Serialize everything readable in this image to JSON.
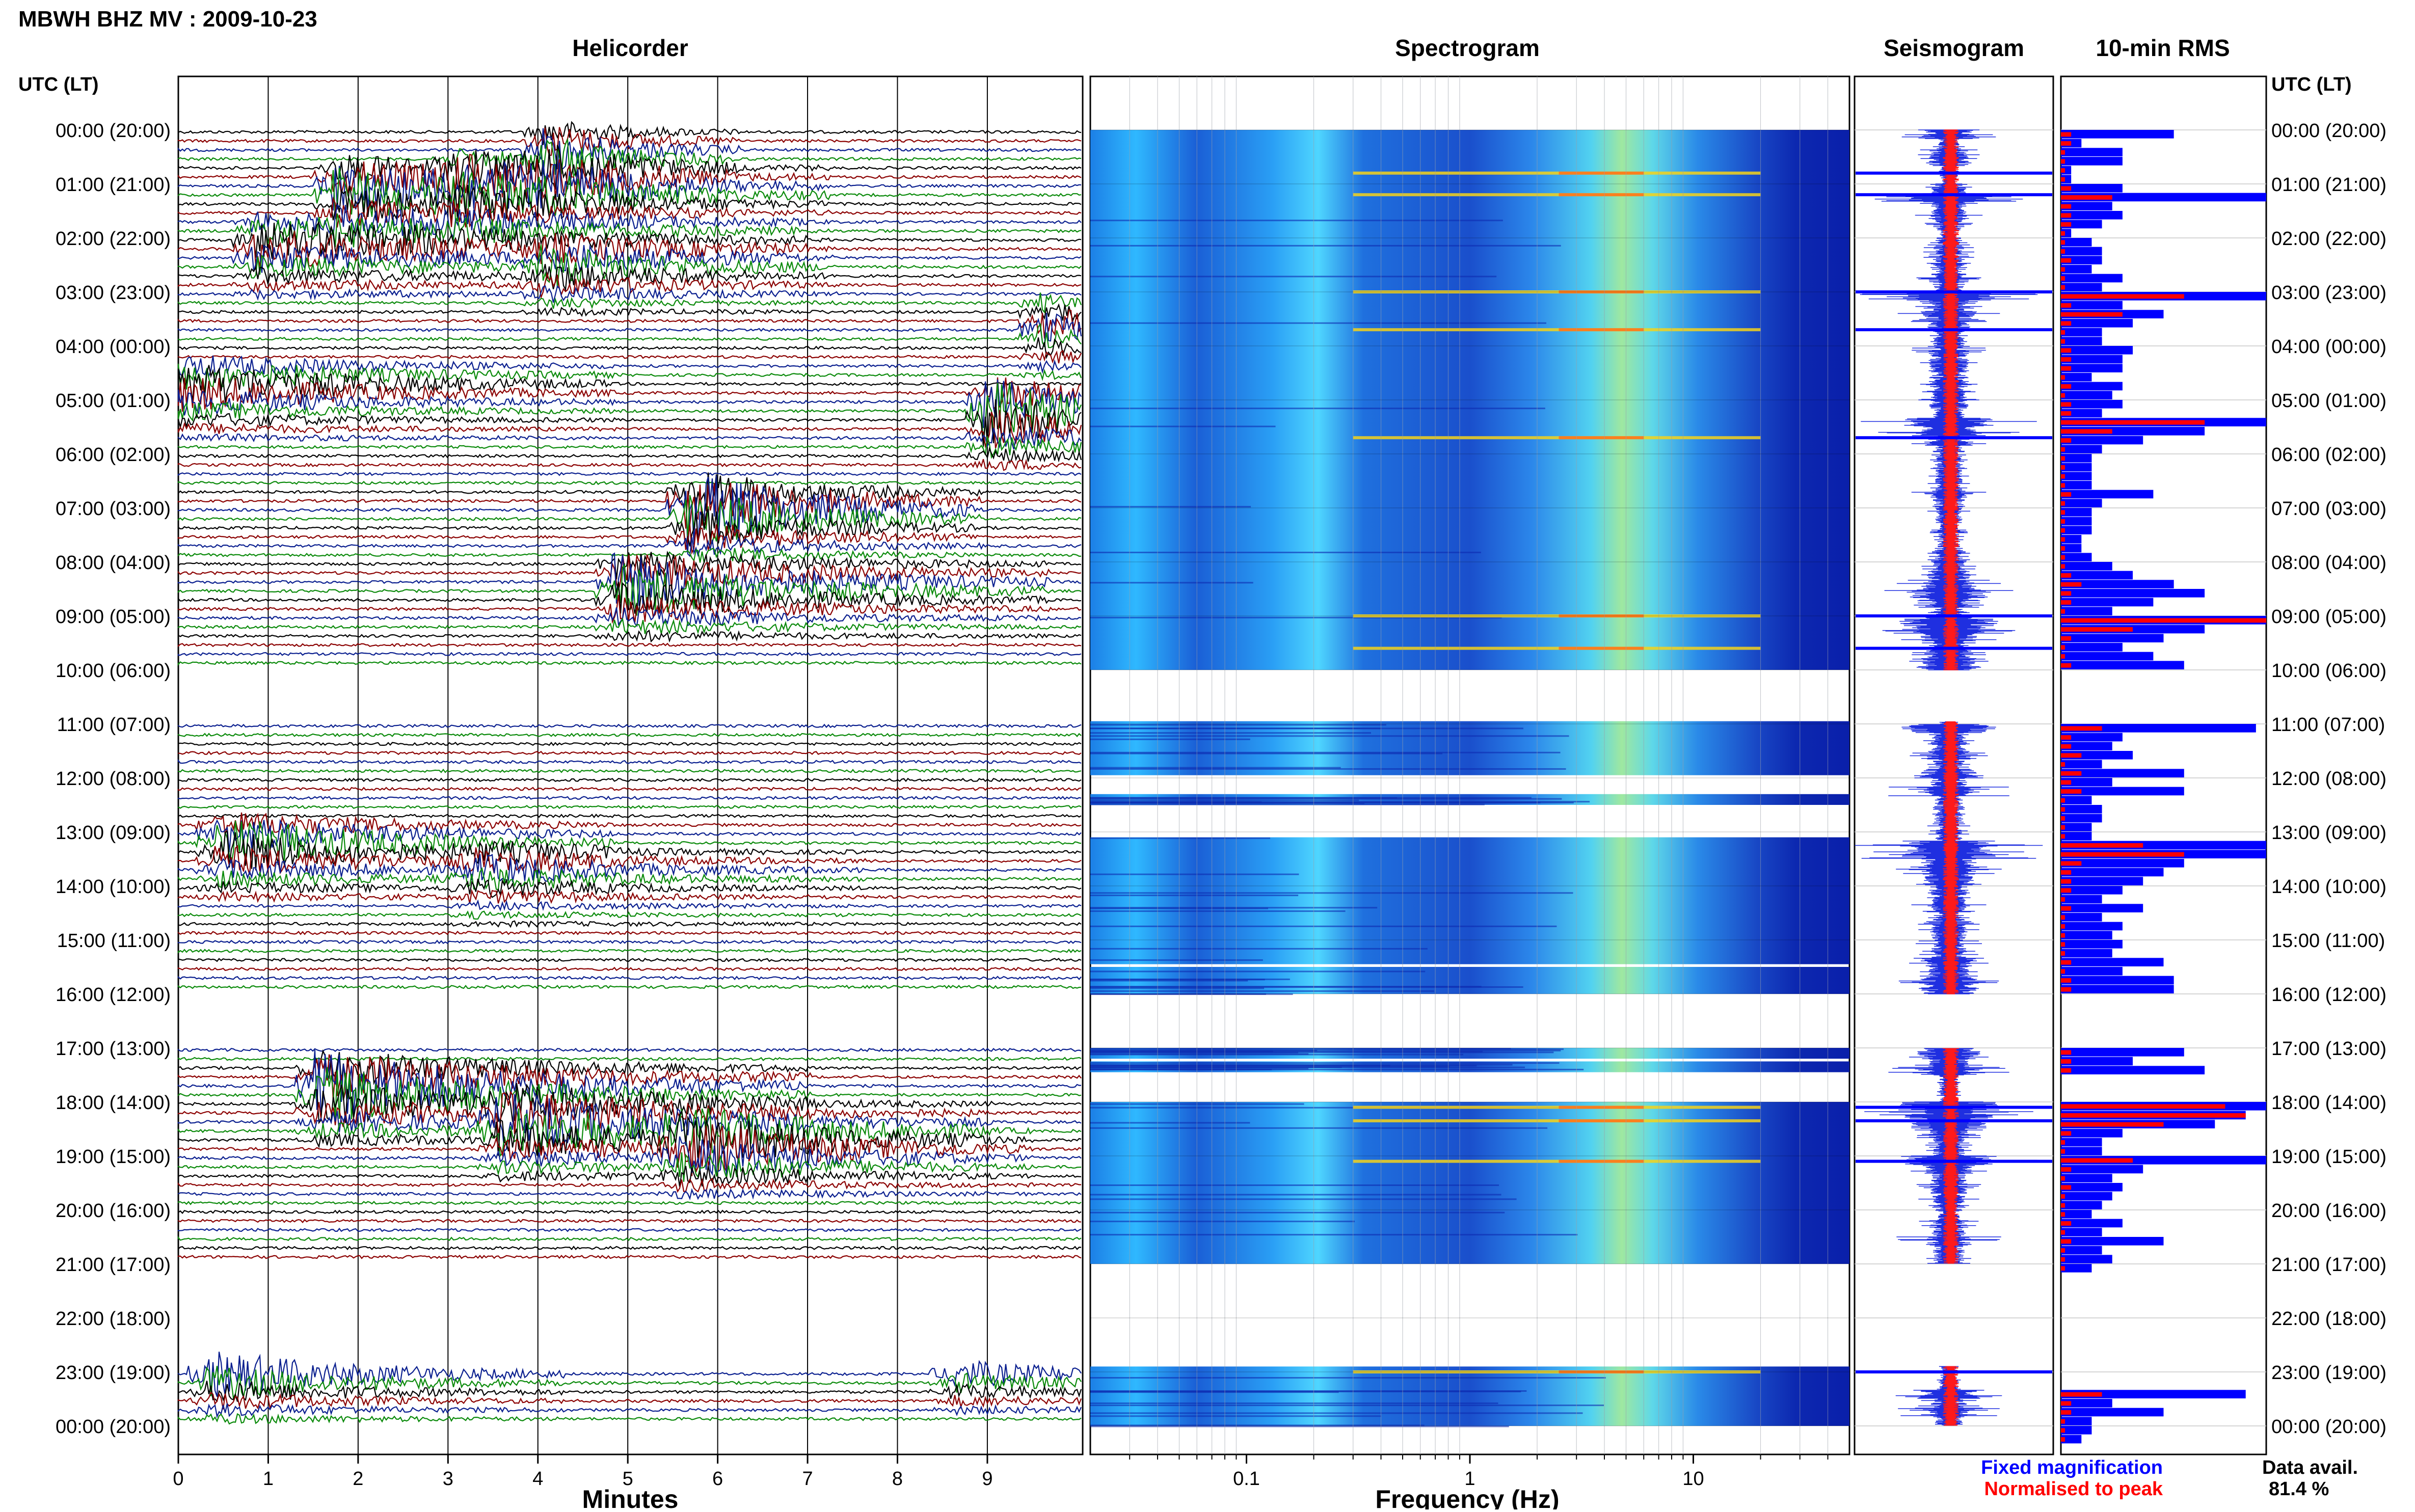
{
  "header": {
    "title": "MBWH BHZ MV : 2009-10-23",
    "panels": [
      "Helicorder",
      "Spectrogram",
      "Seismogram",
      "10-min RMS"
    ],
    "utc_lt_label": "UTC (LT)"
  },
  "time_labels": [
    "00:00 (20:00)",
    "01:00 (21:00)",
    "02:00 (22:00)",
    "03:00 (23:00)",
    "04:00 (00:00)",
    "05:00 (01:00)",
    "06:00 (02:00)",
    "07:00 (03:00)",
    "08:00 (04:00)",
    "09:00 (05:00)",
    "10:00 (06:00)",
    "11:00 (07:00)",
    "12:00 (08:00)",
    "13:00 (09:00)",
    "14:00 (10:00)",
    "15:00 (11:00)",
    "16:00 (12:00)",
    "17:00 (13:00)",
    "18:00 (14:00)",
    "19:00 (15:00)",
    "20:00 (16:00)",
    "21:00 (17:00)",
    "22:00 (18:00)",
    "23:00 (19:00)",
    "00:00 (20:00)"
  ],
  "footer": {
    "xlabel_helicorder": "Minutes",
    "xlabel_spectrogram": "Frequency (Hz)",
    "legend_fixed": "Fixed magnification",
    "legend_normalised": "Normalised to peak",
    "data_avail_label": "Data avail.",
    "data_avail_value": "81.4 %"
  },
  "colors": {
    "trace_black": "#000000",
    "trace_red": "#8b0000",
    "trace_blue": "#0a1f8f",
    "trace_green": "#0a8a0a",
    "spec_bg": "#0a1faa",
    "spec_mid": "#2aa6ff",
    "rms_fixed": "#0000ff",
    "rms_norm": "#ff0000",
    "legend_fixed": "#0000ff",
    "legend_normalised": "#ff0000"
  },
  "chart_data": {
    "type": "heatmap",
    "helicorder": {
      "x_ticks": [
        "0",
        "1",
        "2",
        "3",
        "4",
        "5",
        "6",
        "7",
        "8",
        "9"
      ],
      "xlim": [
        0,
        10
      ],
      "xlabel": "Minutes",
      "rows_per_hour": 6,
      "gaps_hours": [
        [
          10.0,
          10.95
        ],
        [
          16.0,
          17.0
        ],
        [
          21.0,
          22.9
        ]
      ]
    },
    "spectrogram": {
      "x_ticks": [
        "0.1",
        "1",
        "10"
      ],
      "xscale": "log",
      "xlim": [
        0.02,
        50
      ],
      "xlabel": "Frequency (Hz)",
      "data_blocks_hours": [
        [
          0.0,
          10.0
        ],
        [
          10.95,
          11.95
        ],
        [
          12.3,
          12.5
        ],
        [
          13.1,
          15.45
        ],
        [
          15.5,
          16.0
        ],
        [
          17.0,
          17.2
        ],
        [
          17.25,
          17.45
        ],
        [
          18.0,
          21.0
        ],
        [
          22.9,
          24.0
        ]
      ],
      "strong_event_hours": [
        0.8,
        1.2,
        3.0,
        3.7,
        5.7,
        9.0,
        9.6,
        18.1,
        18.35,
        19.1,
        23.0
      ]
    },
    "rms_10min": {
      "xlabel": "",
      "fixed": [
        0.55,
        0.1,
        0.3,
        0.3,
        0.05,
        0.05,
        0.3,
        1.0,
        0.25,
        0.3,
        0.2,
        0.05,
        0.15,
        0.2,
        0.2,
        0.15,
        0.3,
        0.2,
        1.0,
        0.3,
        0.5,
        0.35,
        0.2,
        0.2,
        0.35,
        0.3,
        0.3,
        0.15,
        0.3,
        0.25,
        0.3,
        0.2,
        1.0,
        0.7,
        0.4,
        0.2,
        0.15,
        0.15,
        0.15,
        0.15,
        0.45,
        0.2,
        0.15,
        0.15,
        0.15,
        0.1,
        0.1,
        0.15,
        0.25,
        0.35,
        0.55,
        0.7,
        0.45,
        0.25,
        1.0,
        0.7,
        0.5,
        0.3,
        0.45,
        0.6,
        null,
        null,
        null,
        null,
        null,
        null,
        0.95,
        0.3,
        0.25,
        0.35,
        0.2,
        0.6,
        0.25,
        0.6,
        0.15,
        0.2,
        0.2,
        0.15,
        0.15,
        1.0,
        1.0,
        0.6,
        0.5,
        0.4,
        0.3,
        0.2,
        0.4,
        0.2,
        0.3,
        0.25,
        0.3,
        0.25,
        0.5,
        0.3,
        0.55,
        0.55,
        null,
        null,
        null,
        null,
        null,
        null,
        0.6,
        0.35,
        0.7,
        null,
        null,
        null,
        1.0,
        0.9,
        0.75,
        0.3,
        0.2,
        0.2,
        1.0,
        0.4,
        0.25,
        0.3,
        0.25,
        0.2,
        0.15,
        0.3,
        0.2,
        0.5,
        0.2,
        0.25,
        0.15,
        null,
        null,
        null,
        null,
        null,
        null,
        null,
        null,
        null,
        null,
        null,
        null,
        null,
        0.9,
        0.25,
        0.5,
        0.15,
        0.15,
        0.1
      ],
      "normalised": [
        0.05,
        0.05,
        0.02,
        0.02,
        0.02,
        0.02,
        0.05,
        0.25,
        0.05,
        0.05,
        0.05,
        0.02,
        0.02,
        0.02,
        0.05,
        0.02,
        0.02,
        0.02,
        0.6,
        0.05,
        0.3,
        0.05,
        0.02,
        0.02,
        0.05,
        0.05,
        0.05,
        0.02,
        0.05,
        0.02,
        0.05,
        0.05,
        0.7,
        0.25,
        0.05,
        0.02,
        0.02,
        0.02,
        0.02,
        0.02,
        0.05,
        0.02,
        0.02,
        0.02,
        0.02,
        0.02,
        0.02,
        0.02,
        0.02,
        0.05,
        0.1,
        0.05,
        0.05,
        0.02,
        1.0,
        0.35,
        0.05,
        0.02,
        0.02,
        0.05,
        null,
        null,
        null,
        null,
        null,
        null,
        0.2,
        0.05,
        0.05,
        0.1,
        0.02,
        0.1,
        0.05,
        0.1,
        0.02,
        0.02,
        0.02,
        0.02,
        0.02,
        0.4,
        0.6,
        0.1,
        0.05,
        0.05,
        0.05,
        0.02,
        0.05,
        0.02,
        0.02,
        0.02,
        0.02,
        0.02,
        0.05,
        0.02,
        0.05,
        0.05,
        null,
        null,
        null,
        null,
        null,
        null,
        0.05,
        0.05,
        0.05,
        null,
        null,
        null,
        0.8,
        0.9,
        0.5,
        0.05,
        0.02,
        0.02,
        0.35,
        0.05,
        0.02,
        0.05,
        0.02,
        0.02,
        0.02,
        0.05,
        0.02,
        0.05,
        0.02,
        0.02,
        0.02,
        null,
        null,
        null,
        null,
        null,
        null,
        null,
        null,
        null,
        null,
        null,
        null,
        null,
        0.2,
        0.05,
        0.05,
        0.02,
        0.02,
        0.02
      ]
    }
  }
}
